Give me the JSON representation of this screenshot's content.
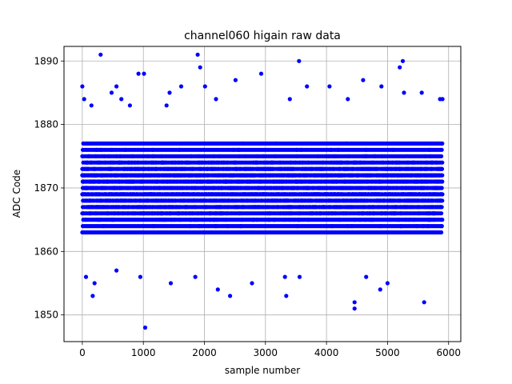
{
  "chart_data": {
    "type": "scatter",
    "title": "channel060 higain raw data",
    "xlabel": "sample number",
    "ylabel": "ADC Code",
    "xlim": [
      -300,
      6200
    ],
    "ylim": [
      1845.8,
      1892.3
    ],
    "xticks": [
      0,
      1000,
      2000,
      3000,
      4000,
      5000,
      6000
    ],
    "yticks": [
      1850,
      1860,
      1870,
      1880,
      1890
    ],
    "xtick_labels": [
      "0",
      "1000",
      "2000",
      "3000",
      "4000",
      "5000",
      "6000"
    ],
    "ytick_labels": [
      "1850",
      "1860",
      "1870",
      "1880",
      "1890"
    ],
    "grid": true,
    "marker_color": "#0000ff",
    "sample_count": 5900,
    "core_range": [
      1862,
      1878
    ],
    "outliers": [
      {
        "x": 0,
        "y": 1886
      },
      {
        "x": 30,
        "y": 1884
      },
      {
        "x": 60,
        "y": 1856
      },
      {
        "x": 150,
        "y": 1883
      },
      {
        "x": 170,
        "y": 1853
      },
      {
        "x": 200,
        "y": 1855
      },
      {
        "x": 300,
        "y": 1891
      },
      {
        "x": 480,
        "y": 1885
      },
      {
        "x": 560,
        "y": 1886
      },
      {
        "x": 560,
        "y": 1857
      },
      {
        "x": 640,
        "y": 1884
      },
      {
        "x": 780,
        "y": 1883
      },
      {
        "x": 920,
        "y": 1888
      },
      {
        "x": 950,
        "y": 1856
      },
      {
        "x": 1010,
        "y": 1888
      },
      {
        "x": 1030,
        "y": 1848
      },
      {
        "x": 1380,
        "y": 1883
      },
      {
        "x": 1430,
        "y": 1885
      },
      {
        "x": 1450,
        "y": 1855
      },
      {
        "x": 1620,
        "y": 1886
      },
      {
        "x": 1850,
        "y": 1856
      },
      {
        "x": 1890,
        "y": 1891
      },
      {
        "x": 1930,
        "y": 1889
      },
      {
        "x": 2010,
        "y": 1886
      },
      {
        "x": 2190,
        "y": 1884
      },
      {
        "x": 2220,
        "y": 1854
      },
      {
        "x": 2420,
        "y": 1853
      },
      {
        "x": 2510,
        "y": 1887
      },
      {
        "x": 2780,
        "y": 1855
      },
      {
        "x": 2930,
        "y": 1888
      },
      {
        "x": 3320,
        "y": 1856
      },
      {
        "x": 3340,
        "y": 1853
      },
      {
        "x": 3400,
        "y": 1884
      },
      {
        "x": 3550,
        "y": 1890
      },
      {
        "x": 3560,
        "y": 1856
      },
      {
        "x": 3680,
        "y": 1886
      },
      {
        "x": 4050,
        "y": 1886
      },
      {
        "x": 4350,
        "y": 1884
      },
      {
        "x": 4460,
        "y": 1852
      },
      {
        "x": 4460,
        "y": 1851
      },
      {
        "x": 4600,
        "y": 1887
      },
      {
        "x": 4650,
        "y": 1856
      },
      {
        "x": 4880,
        "y": 1854
      },
      {
        "x": 4900,
        "y": 1886
      },
      {
        "x": 5000,
        "y": 1855
      },
      {
        "x": 5200,
        "y": 1889
      },
      {
        "x": 5250,
        "y": 1890
      },
      {
        "x": 5270,
        "y": 1885
      },
      {
        "x": 5560,
        "y": 1885
      },
      {
        "x": 5600,
        "y": 1852
      },
      {
        "x": 5860,
        "y": 1884
      },
      {
        "x": 5900,
        "y": 1884
      }
    ]
  }
}
